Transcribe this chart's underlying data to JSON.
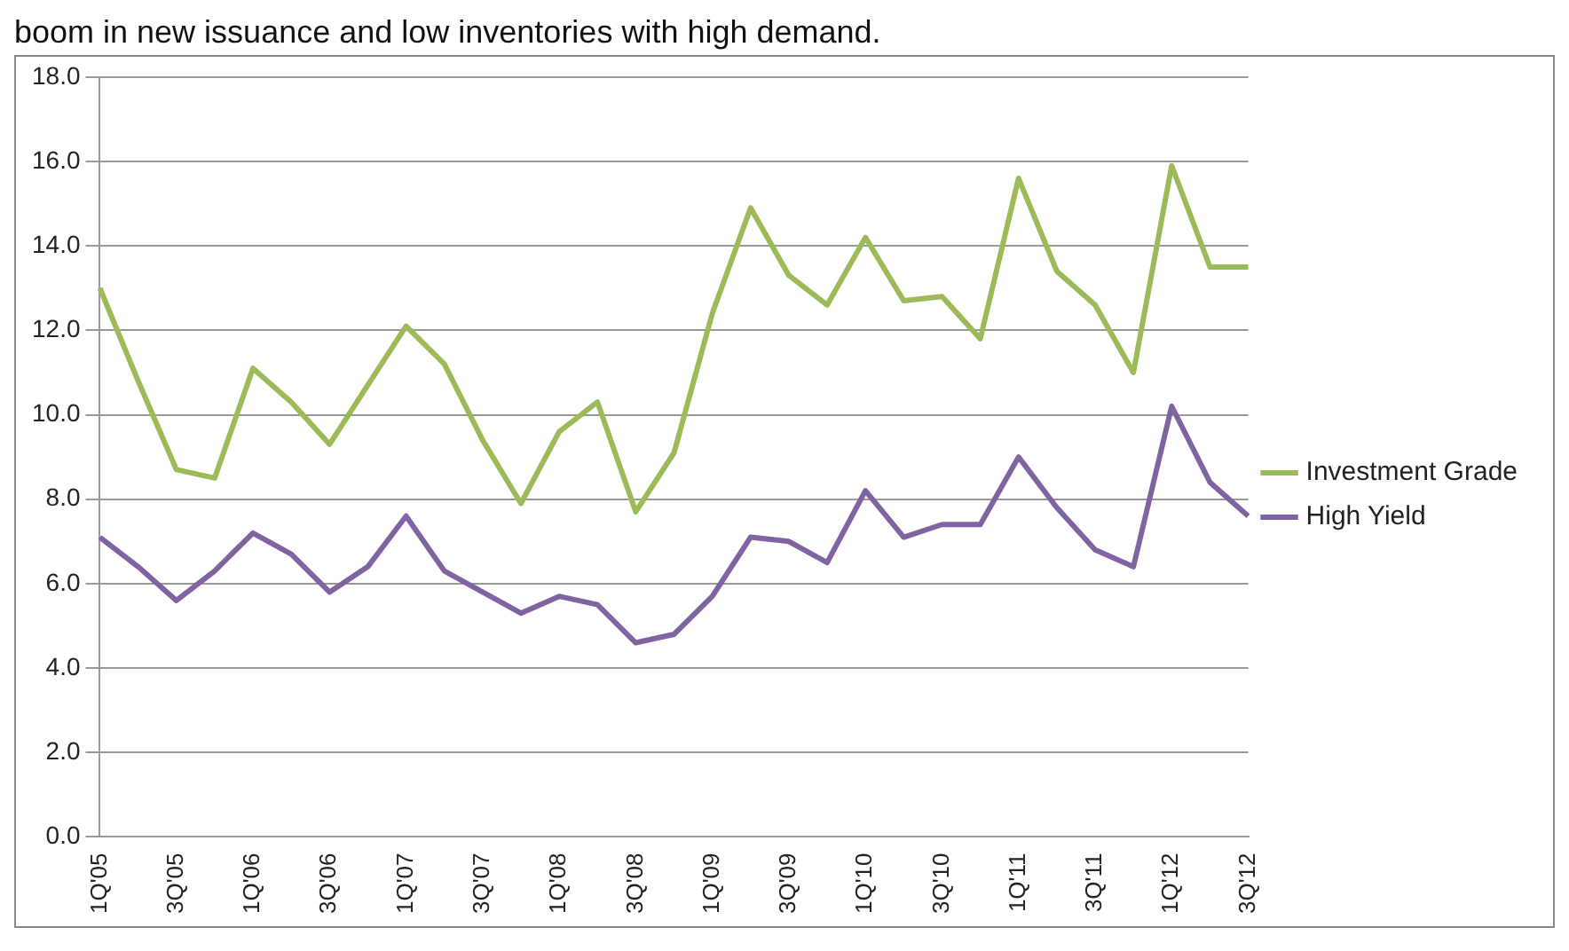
{
  "chart_data": {
    "type": "line",
    "annotations": [
      "boom in new issuance and low inventories with high demand."
    ],
    "categories": [
      "1Q'05",
      null,
      "3Q'05",
      null,
      "1Q'06",
      null,
      "3Q'06",
      null,
      "1Q'07",
      null,
      "3Q'07",
      null,
      "1Q'08",
      null,
      "3Q'08",
      null,
      "1Q'09",
      null,
      "3Q'09",
      null,
      "1Q'10",
      null,
      "3Q'10",
      null,
      "1Q'11",
      null,
      "3Q'11",
      null,
      "1Q'12",
      null,
      "3Q'12"
    ],
    "series": [
      {
        "name": "Investment Grade",
        "color": "#9bbb59",
        "values": [
          13.0,
          10.8,
          8.7,
          8.5,
          11.1,
          10.3,
          9.3,
          10.7,
          12.1,
          11.2,
          9.4,
          7.9,
          9.6,
          10.3,
          7.7,
          9.1,
          12.4,
          14.9,
          13.3,
          12.6,
          14.2,
          12.7,
          12.8,
          11.8,
          15.6,
          13.4,
          12.6,
          11.0,
          15.9,
          13.5,
          13.5
        ]
      },
      {
        "name": "High Yield",
        "color": "#8064a2",
        "values": [
          7.1,
          6.4,
          5.6,
          6.3,
          7.2,
          6.7,
          5.8,
          6.4,
          7.6,
          6.3,
          5.8,
          5.3,
          5.7,
          5.5,
          4.6,
          4.8,
          5.7,
          7.1,
          7.0,
          6.5,
          8.2,
          7.1,
          7.4,
          7.4,
          9.0,
          7.8,
          6.8,
          6.4,
          10.2,
          8.4,
          7.6
        ]
      }
    ],
    "ylim": [
      0,
      18
    ],
    "yticks": [
      {
        "value": 0,
        "label": "0.0"
      },
      {
        "value": 2,
        "label": "2.0"
      },
      {
        "value": 4,
        "label": "4.0"
      },
      {
        "value": 6,
        "label": "6.0"
      },
      {
        "value": 8,
        "label": "8.0"
      },
      {
        "value": 10,
        "label": "10.0"
      },
      {
        "value": 12,
        "label": "12.0"
      },
      {
        "value": 14,
        "label": "14.0"
      },
      {
        "value": 16,
        "label": "16.0"
      },
      {
        "value": 18,
        "label": "18.0"
      }
    ],
    "grid": "y",
    "legend": "right",
    "marker": "none",
    "line_style": "solid"
  }
}
